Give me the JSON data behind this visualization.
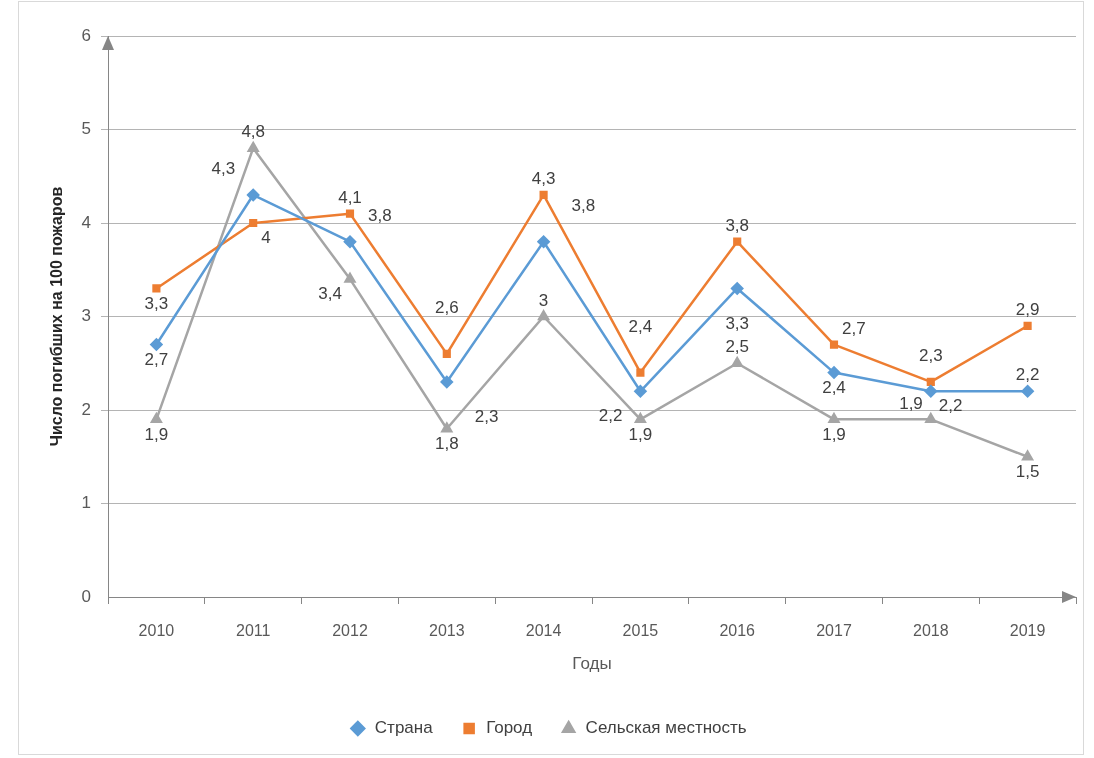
{
  "chart_data": {
    "type": "line",
    "xlabel": "Годы",
    "ylabel": "Число погибших на 100 пожаров",
    "categories": [
      "2010",
      "2011",
      "2012",
      "2013",
      "2014",
      "2015",
      "2016",
      "2017",
      "2018",
      "2019"
    ],
    "ylim": [
      0,
      6
    ],
    "yticks": [
      0,
      1,
      2,
      3,
      4,
      5,
      6
    ],
    "grid": "y",
    "legend": "bottom",
    "line_style": "solid",
    "series": [
      {
        "name": "Страна",
        "color": "#5b9bd5",
        "marker": "diamond",
        "values": [
          2.7,
          4.3,
          3.8,
          2.3,
          3.8,
          2.2,
          3.3,
          2.4,
          2.2,
          2.2
        ],
        "value_labels": [
          "2,7",
          "4,3",
          "3,8",
          "2,3",
          "3,8",
          "2,2",
          "3,3",
          "2,4",
          "2,2",
          "2,2"
        ]
      },
      {
        "name": "Город",
        "color": "#ed7d31",
        "marker": "square",
        "values": [
          3.3,
          4,
          4.1,
          2.6,
          4.3,
          2.4,
          3.8,
          2.7,
          2.3,
          2.9
        ],
        "value_labels": [
          "3,3",
          "4",
          "4,1",
          "2,6",
          "4,3",
          "2,4",
          "3,8",
          "2,7",
          "2,3",
          "2,9"
        ]
      },
      {
        "name": "Сельская местность",
        "color": "#a5a5a5",
        "marker": "triangle",
        "values": [
          1.9,
          4.8,
          3.4,
          1.8,
          3,
          1.9,
          2.5,
          1.9,
          1.9,
          1.5
        ],
        "value_labels": [
          "1,9",
          "4,8",
          "3,4",
          "1,8",
          "3",
          "1,9",
          "2,5",
          "1,9",
          "1,9",
          "1,5"
        ]
      }
    ]
  }
}
